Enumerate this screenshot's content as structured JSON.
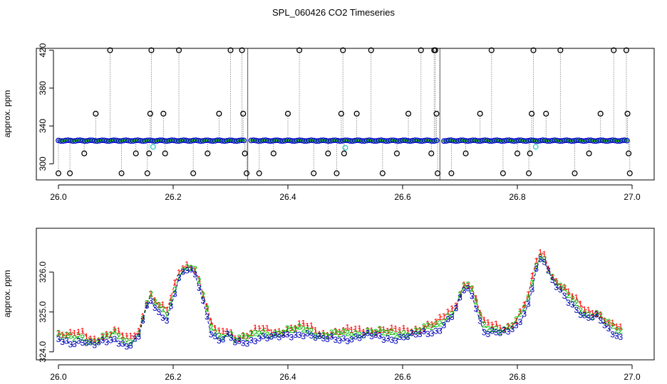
{
  "title": "SPL_060426  CO2 Timeseries",
  "chart_data": [
    {
      "type": "scatter",
      "panel": "top",
      "ylabel": "approx. ppm",
      "xlabel": "",
      "xlim": [
        26.0,
        27.0
      ],
      "ylim": [
        283,
        422
      ],
      "x_ticks": [
        26.0,
        26.2,
        26.4,
        26.6,
        26.8,
        27.0
      ],
      "x_tick_labels": [
        "26.0",
        "26.2",
        "26.4",
        "26.6",
        "26.8",
        "27.0"
      ],
      "y_ticks": [
        300,
        340,
        380,
        420
      ],
      "y_tick_labels": [
        "300",
        "340",
        "380",
        "420"
      ],
      "baseline_ppm": 324.5,
      "series_colors": {
        "outliers": "#000000",
        "baseline": "#0000cc",
        "highlight": "#20c8c8"
      },
      "segment_breaks": [
        26.33,
        26.665
      ],
      "outliers": [
        {
          "x": 26.0,
          "y": 290
        },
        {
          "x": 26.02,
          "y": 290
        },
        {
          "x": 26.045,
          "y": 311
        },
        {
          "x": 26.065,
          "y": 353
        },
        {
          "x": 26.09,
          "y": 420
        },
        {
          "x": 26.11,
          "y": 290
        },
        {
          "x": 26.135,
          "y": 311
        },
        {
          "x": 26.155,
          "y": 290
        },
        {
          "x": 26.158,
          "y": 311
        },
        {
          "x": 26.16,
          "y": 353
        },
        {
          "x": 26.162,
          "y": 420
        },
        {
          "x": 26.183,
          "y": 353
        },
        {
          "x": 26.186,
          "y": 311
        },
        {
          "x": 26.21,
          "y": 420
        },
        {
          "x": 26.235,
          "y": 290
        },
        {
          "x": 26.26,
          "y": 311
        },
        {
          "x": 26.28,
          "y": 353
        },
        {
          "x": 26.3,
          "y": 420
        },
        {
          "x": 26.32,
          "y": 420
        },
        {
          "x": 26.322,
          "y": 353
        },
        {
          "x": 26.325,
          "y": 311
        },
        {
          "x": 26.328,
          "y": 290
        },
        {
          "x": 26.35,
          "y": 290
        },
        {
          "x": 26.375,
          "y": 311
        },
        {
          "x": 26.4,
          "y": 353
        },
        {
          "x": 26.42,
          "y": 420
        },
        {
          "x": 26.445,
          "y": 290
        },
        {
          "x": 26.47,
          "y": 311
        },
        {
          "x": 26.485,
          "y": 290
        },
        {
          "x": 26.493,
          "y": 353
        },
        {
          "x": 26.496,
          "y": 420
        },
        {
          "x": 26.498,
          "y": 311
        },
        {
          "x": 26.52,
          "y": 353
        },
        {
          "x": 26.545,
          "y": 420
        },
        {
          "x": 26.565,
          "y": 290
        },
        {
          "x": 26.59,
          "y": 311
        },
        {
          "x": 26.61,
          "y": 353
        },
        {
          "x": 26.632,
          "y": 420
        },
        {
          "x": 26.65,
          "y": 311
        },
        {
          "x": 26.655,
          "y": 420
        },
        {
          "x": 26.657,
          "y": 420
        },
        {
          "x": 26.659,
          "y": 353
        },
        {
          "x": 26.661,
          "y": 290
        },
        {
          "x": 26.685,
          "y": 290
        },
        {
          "x": 26.71,
          "y": 311
        },
        {
          "x": 26.735,
          "y": 353
        },
        {
          "x": 26.755,
          "y": 420
        },
        {
          "x": 26.775,
          "y": 290
        },
        {
          "x": 26.8,
          "y": 311
        },
        {
          "x": 26.82,
          "y": 290
        },
        {
          "x": 26.822,
          "y": 311
        },
        {
          "x": 26.825,
          "y": 353
        },
        {
          "x": 26.828,
          "y": 420
        },
        {
          "x": 26.85,
          "y": 353
        },
        {
          "x": 26.875,
          "y": 420
        },
        {
          "x": 26.9,
          "y": 290
        },
        {
          "x": 26.925,
          "y": 311
        },
        {
          "x": 26.945,
          "y": 353
        },
        {
          "x": 26.968,
          "y": 420
        },
        {
          "x": 26.99,
          "y": 420
        },
        {
          "x": 26.992,
          "y": 353
        },
        {
          "x": 26.994,
          "y": 311
        },
        {
          "x": 26.996,
          "y": 290
        }
      ],
      "highlights": [
        {
          "x": 26.165,
          "y": 318
        },
        {
          "x": 26.5,
          "y": 317
        },
        {
          "x": 26.832,
          "y": 318
        }
      ]
    },
    {
      "type": "line",
      "panel": "bottom",
      "ylabel": "approx. ppm",
      "xlabel": "",
      "xlim": [
        26.0,
        27.0
      ],
      "ylim": [
        323.8,
        327.1
      ],
      "x_ticks": [
        26.0,
        26.2,
        26.4,
        26.6,
        26.8,
        27.0
      ],
      "x_tick_labels": [
        "26.0",
        "26.2",
        "26.4",
        "26.6",
        "26.8",
        "27.0"
      ],
      "y_ticks": [
        324.0,
        325.0,
        326.0
      ],
      "y_tick_labels": [
        "324.0",
        "325.0",
        "326.0"
      ],
      "series_colors": {
        "1": "#ff0000",
        "2": "#00aa00",
        "3": "#0000bb"
      },
      "keyframes": [
        [
          26.0,
          324.35
        ],
        [
          26.02,
          324.3
        ],
        [
          26.04,
          324.35
        ],
        [
          26.06,
          324.2
        ],
        [
          26.08,
          324.3
        ],
        [
          26.1,
          324.4
        ],
        [
          26.12,
          324.2
        ],
        [
          26.14,
          324.4
        ],
        [
          26.15,
          325.0
        ],
        [
          26.16,
          325.35
        ],
        [
          26.175,
          325.05
        ],
        [
          26.19,
          324.9
        ],
        [
          26.2,
          325.4
        ],
        [
          26.21,
          325.9
        ],
        [
          26.225,
          326.1
        ],
        [
          26.235,
          326.05
        ],
        [
          26.245,
          325.7
        ],
        [
          26.255,
          325.2
        ],
        [
          26.265,
          324.6
        ],
        [
          26.28,
          324.35
        ],
        [
          26.295,
          324.45
        ],
        [
          26.31,
          324.25
        ],
        [
          26.33,
          324.3
        ],
        [
          26.35,
          324.45
        ],
        [
          26.38,
          324.4
        ],
        [
          26.4,
          324.45
        ],
        [
          26.43,
          324.55
        ],
        [
          26.46,
          324.35
        ],
        [
          26.5,
          324.4
        ],
        [
          26.54,
          324.45
        ],
        [
          26.58,
          324.4
        ],
        [
          26.62,
          324.45
        ],
        [
          26.66,
          324.6
        ],
        [
          26.69,
          325.0
        ],
        [
          26.71,
          325.7
        ],
        [
          26.725,
          325.35
        ],
        [
          26.74,
          324.6
        ],
        [
          26.76,
          324.55
        ],
        [
          26.78,
          324.5
        ],
        [
          26.8,
          324.7
        ],
        [
          26.82,
          325.3
        ],
        [
          26.835,
          326.3
        ],
        [
          26.845,
          326.4
        ],
        [
          26.86,
          325.8
        ],
        [
          26.88,
          325.5
        ],
        [
          26.9,
          325.2
        ],
        [
          26.92,
          324.9
        ],
        [
          26.94,
          324.9
        ],
        [
          26.96,
          324.6
        ],
        [
          26.98,
          324.45
        ]
      ],
      "series": [
        {
          "name": "1",
          "offset": 0.12
        },
        {
          "name": "2",
          "offset": 0.05
        },
        {
          "name": "3",
          "offset": -0.06
        }
      ],
      "x_end": 26.985,
      "step": 0.007
    }
  ]
}
